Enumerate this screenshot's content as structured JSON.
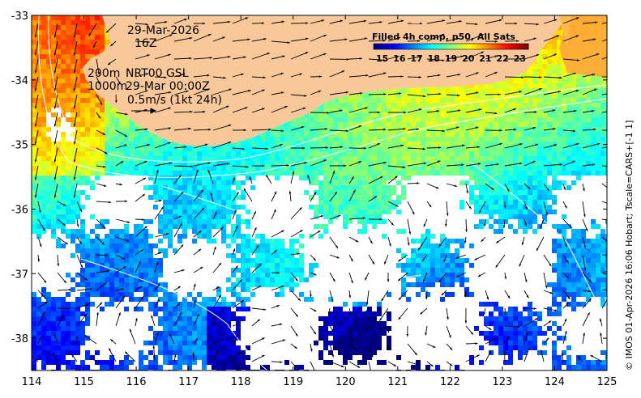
{
  "chart_data": {
    "type": "heatmap",
    "title": "",
    "xlabel": "",
    "ylabel": "",
    "x_ticks": [
      114,
      115,
      116,
      117,
      118,
      119,
      120,
      121,
      122,
      123,
      124,
      125
    ],
    "y_ticks": [
      -33,
      -34,
      -35,
      -36,
      -37,
      -38
    ],
    "xlim": [
      114,
      125
    ],
    "ylim": [
      -38.5,
      -33
    ],
    "grid": false,
    "colorbar": {
      "title": "Filled 4h comp, p50, All Sats",
      "ticks": [
        15,
        16,
        17,
        18,
        19,
        20,
        21,
        22,
        23
      ],
      "range": [
        14.5,
        23.5
      ],
      "placement": "top-right"
    },
    "annotations": {
      "date": "29-Mar-2026",
      "hour": "16Z",
      "contour_200m": "200m",
      "contour_1000m": "1000m",
      "model": "NRT00 GSL",
      "model_time": "29-Mar 00:00Z",
      "velocity_scale": "0.5m/s (1kt 24h)"
    },
    "credit": "© IMOS 01-Apr-2026 16:06 Hobart; Tscale=CARS+[-1 1]",
    "colors": {
      "land": "#f9c89a",
      "no_data": "#ffffff"
    }
  }
}
